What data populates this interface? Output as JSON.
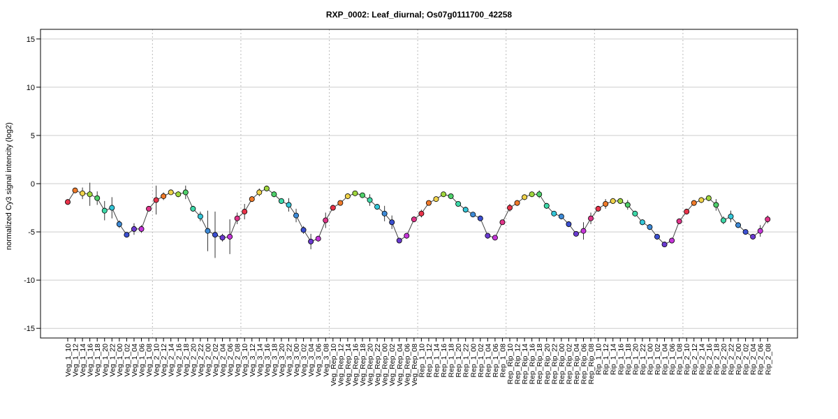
{
  "chart_data": {
    "type": "line",
    "title": "RXP_0002: Leaf_diurnal; Os07g0111700_42258",
    "xlabel": "",
    "ylabel": "normalized Cy3 signal intencity (log2)",
    "ylim": [
      -16,
      16
    ],
    "yticks": [
      -15,
      -10,
      -5,
      0,
      5,
      10,
      15
    ],
    "grid": true,
    "group_separators_after": [
      "Veg_1_08",
      "Veg_2_08",
      "Veg_3_08",
      "Veg_Rep_08",
      "Rep_1_08",
      "Rep_Rip_08",
      "Rip_1_08"
    ],
    "categories": [
      "Veg_1_10",
      "Veg_1_12",
      "Veg_1_14",
      "Veg_1_16",
      "Veg_1_18",
      "Veg_1_20",
      "Veg_1_22",
      "Veg_1_00",
      "Veg_1_02",
      "Veg_1_04",
      "Veg_1_06",
      "Veg_1_08",
      "Veg_2_10",
      "Veg_2_12",
      "Veg_2_14",
      "Veg_2_16",
      "Veg_2_18",
      "Veg_2_20",
      "Veg_2_22",
      "Veg_2_00",
      "Veg_2_02",
      "Veg_2_04",
      "Veg_2_06",
      "Veg_2_08",
      "Veg_3_10",
      "Veg_3_12",
      "Veg_3_14",
      "Veg_3_16",
      "Veg_3_18",
      "Veg_3_20",
      "Veg_3_22",
      "Veg_3_00",
      "Veg_3_02",
      "Veg_3_04",
      "Veg_3_06",
      "Veg_3_08",
      "Veg_Rep_10",
      "Veg_Rep_12",
      "Veg_Rep_14",
      "Veg_Rep_16",
      "Veg_Rep_18",
      "Veg_Rep_20",
      "Veg_Rep_22",
      "Veg_Rep_00",
      "Veg_Rep_02",
      "Veg_Rep_04",
      "Veg_Rep_06",
      "Veg_Rep_08",
      "Rep_1_10",
      "Rep_1_12",
      "Rep_1_14",
      "Rep_1_16",
      "Rep_1_18",
      "Rep_1_20",
      "Rep_1_22",
      "Rep_1_00",
      "Rep_1_02",
      "Rep_1_04",
      "Rep_1_06",
      "Rep_1_08",
      "Rep_Rip_10",
      "Rep_Rip_12",
      "Rep_Rip_14",
      "Rep_Rip_16",
      "Rep_Rip_18",
      "Rep_Rip_20",
      "Rep_Rip_22",
      "Rep_Rip_00",
      "Rep_Rip_02",
      "Rep_Rip_04",
      "Rep_Rip_06",
      "Rep_Rip_08",
      "Rip_1_10",
      "Rip_1_12",
      "Rip_1_14",
      "Rip_1_16",
      "Rip_1_18",
      "Rip_1_20",
      "Rip_1_22",
      "Rip_1_00",
      "Rip_1_02",
      "Rip_1_04",
      "Rip_1_06",
      "Rip_1_08",
      "Rip_2_10",
      "Rip_2_12",
      "Rip_2_14",
      "Rip_2_16",
      "Rip_2_18",
      "Rip_2_20",
      "Rip_2_22",
      "Rip_2_00",
      "Rip_2_02",
      "Rip_2_04",
      "Rip_2_06",
      "Rip_2_08"
    ],
    "values": [
      -1.9,
      -0.7,
      -1.0,
      -1.1,
      -1.5,
      -2.8,
      -2.5,
      -4.2,
      -5.3,
      -4.7,
      -4.7,
      -2.6,
      -1.7,
      -1.3,
      -0.9,
      -1.1,
      -0.9,
      -2.6,
      -3.4,
      -4.9,
      -5.3,
      -5.6,
      -5.5,
      -3.6,
      -2.9,
      -1.6,
      -0.9,
      -0.5,
      -1.1,
      -1.8,
      -2.2,
      -3.3,
      -4.8,
      -6.0,
      -5.7,
      -3.8,
      -2.5,
      -2.0,
      -1.3,
      -1.0,
      -1.2,
      -1.7,
      -2.4,
      -3.1,
      -4.0,
      -5.9,
      -5.4,
      -3.7,
      -3.1,
      -2.0,
      -1.6,
      -1.1,
      -1.3,
      -2.1,
      -2.7,
      -3.2,
      -3.6,
      -5.4,
      -5.6,
      -4.0,
      -2.5,
      -2.0,
      -1.4,
      -1.1,
      -1.1,
      -2.3,
      -3.1,
      -3.4,
      -4.2,
      -5.2,
      -4.9,
      -3.6,
      -2.6,
      -2.1,
      -1.8,
      -1.8,
      -2.2,
      -3.1,
      -4.0,
      -4.5,
      -5.5,
      -6.3,
      -5.9,
      -3.9,
      -2.9,
      -2.0,
      -1.7,
      -1.5,
      -2.2,
      -3.8,
      -3.4,
      -4.3,
      -5.0,
      -5.5,
      -4.9,
      -3.7
    ],
    "errors": [
      0.3,
      0.2,
      0.6,
      1.2,
      0.7,
      1.0,
      1.1,
      0.4,
      0.2,
      0.6,
      0.4,
      0.2,
      1.5,
      0.4,
      0.2,
      0.3,
      0.7,
      0.3,
      0.5,
      2.1,
      2.4,
      0.4,
      1.8,
      0.6,
      0.8,
      0.3,
      0.4,
      0.3,
      0.3,
      0.3,
      0.7,
      0.7,
      0.4,
      0.8,
      0.3,
      0.8,
      0.3,
      0.2,
      0.3,
      0.2,
      0.2,
      0.6,
      0.3,
      0.8,
      0.7,
      0.2,
      0.3,
      0.3,
      0.4,
      0.2,
      0.2,
      0.2,
      0.2,
      0.2,
      0.3,
      0.2,
      0.3,
      0.3,
      0.2,
      0.2,
      0.4,
      0.3,
      0.3,
      0.2,
      0.4,
      0.3,
      0.2,
      0.3,
      0.3,
      0.2,
      0.9,
      0.6,
      0.3,
      0.5,
      0.3,
      0.3,
      0.5,
      0.3,
      0.3,
      0.3,
      0.3,
      0.2,
      0.3,
      0.3,
      0.3,
      0.3,
      0.3,
      0.3,
      0.6,
      0.4,
      0.6,
      0.3,
      0.2,
      0.2,
      0.6,
      0.4
    ],
    "point_colors_by_hour": {
      "10": "#e8334a",
      "12": "#ef7a2a",
      "14": "#efd24a",
      "16": "#9fd63e",
      "18": "#4ecf6a",
      "20": "#3dd8a8",
      "22": "#33c6d8",
      "00": "#3d8ad6",
      "02": "#3b4fd0",
      "04": "#6a3bd0",
      "06": "#c535d8",
      "08": "#e0358a"
    }
  }
}
